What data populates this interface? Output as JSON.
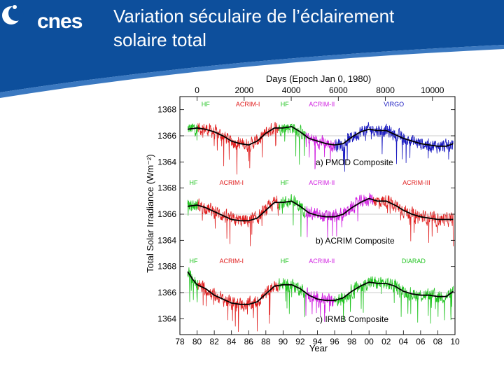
{
  "header": {
    "logo_text": "cnes",
    "title_line1": "Variation séculaire de l’éclairement",
    "title_line2": "solaire total",
    "bg_color": "#0d4f9c"
  },
  "chart_data": {
    "type": "line",
    "xlabel": "Year",
    "top_axis_label": "Days (Epoch Jan 0, 1980)",
    "ylabel": "Total Solar Irradiance (Wm⁻²)",
    "x_tick_labels": [
      "78",
      "80",
      "82",
      "84",
      "86",
      "88",
      "90",
      "92",
      "94",
      "96",
      "98",
      "00",
      "02",
      "04",
      "06",
      "08",
      "10"
    ],
    "x_range": [
      1978,
      2010
    ],
    "top_tick_labels": [
      "0",
      "2000",
      "4000",
      "6000",
      "8000",
      "10000"
    ],
    "y_tick_labels": [
      "1364",
      "1366",
      "1368"
    ],
    "y_range": [
      1363,
      1369
    ],
    "colors": {
      "HF": "#22c422",
      "ACRIM-I": "#e02020",
      "ACRIM-II": "#d020e0",
      "ACRIM-III": "#e02020",
      "VIRGO": "#1818c0",
      "DIARAD": "#22c422",
      "smooth": "#000000"
    },
    "panels": [
      {
        "title": "a) PMOD Composite",
        "segments": [
          {
            "name": "HF",
            "start": 1978.9,
            "end": 1980.1
          },
          {
            "name": "ACRIM-I",
            "start": 1980.1,
            "end": 1989.5
          },
          {
            "name": "HF",
            "start": 1989.5,
            "end": 1992.6
          },
          {
            "name": "ACRIM-II",
            "start": 1992.6,
            "end": 1996.0
          },
          {
            "name": "VIRGO",
            "start": 1996.0,
            "end": 2009.8
          }
        ],
        "segment_labels": [
          {
            "text": "HF",
            "x": 1980.5
          },
          {
            "text": "ACRIM-I",
            "x": 1984.5
          },
          {
            "text": "HF",
            "x": 1989.7
          },
          {
            "text": "ACRIM-II",
            "x": 1993.0
          },
          {
            "text": "VIRGO",
            "x": 2001.7
          }
        ],
        "smooth_values": [
          [
            1978.9,
            1366.5
          ],
          [
            1980,
            1366.6
          ],
          [
            1981,
            1366.5
          ],
          [
            1982,
            1366.3
          ],
          [
            1983,
            1366.0
          ],
          [
            1984,
            1365.6
          ],
          [
            1985,
            1365.4
          ],
          [
            1986,
            1365.3
          ],
          [
            1987,
            1365.6
          ],
          [
            1988,
            1366.2
          ],
          [
            1989,
            1366.6
          ],
          [
            1990,
            1366.6
          ],
          [
            1991,
            1366.7
          ],
          [
            1992,
            1366.3
          ],
          [
            1993,
            1365.8
          ],
          [
            1994,
            1365.6
          ],
          [
            1995,
            1365.4
          ],
          [
            1996,
            1365.3
          ],
          [
            1997,
            1365.4
          ],
          [
            1998,
            1365.9
          ],
          [
            1999,
            1366.3
          ],
          [
            2000,
            1366.5
          ],
          [
            2001,
            1366.4
          ],
          [
            2002,
            1366.4
          ],
          [
            2003,
            1366.1
          ],
          [
            2004,
            1365.8
          ],
          [
            2005,
            1365.6
          ],
          [
            2006,
            1365.4
          ],
          [
            2007,
            1365.3
          ],
          [
            2008,
            1365.2
          ],
          [
            2009,
            1365.2
          ],
          [
            2009.8,
            1365.4
          ]
        ]
      },
      {
        "title": "b) ACRIM Composite",
        "segments": [
          {
            "name": "HF",
            "start": 1978.9,
            "end": 1980.1
          },
          {
            "name": "ACRIM-I",
            "start": 1980.1,
            "end": 1989.5
          },
          {
            "name": "HF",
            "start": 1989.5,
            "end": 1992.6
          },
          {
            "name": "ACRIM-II",
            "start": 1992.6,
            "end": 2000.5
          },
          {
            "name": "ACRIM-III",
            "start": 2000.5,
            "end": 2009.8
          }
        ],
        "segment_labels": [
          {
            "text": "HF",
            "x": 1979.1
          },
          {
            "text": "ACRIM-I",
            "x": 1982.6
          },
          {
            "text": "HF",
            "x": 1989.7
          },
          {
            "text": "ACRIM-II",
            "x": 1993.0
          },
          {
            "text": "ACRIM-III",
            "x": 2003.9
          }
        ],
        "smooth_values": [
          [
            1978.9,
            1366.6
          ],
          [
            1980,
            1366.7
          ],
          [
            1981,
            1366.5
          ],
          [
            1982,
            1366.2
          ],
          [
            1983,
            1365.9
          ],
          [
            1984,
            1365.6
          ],
          [
            1985,
            1365.5
          ],
          [
            1986,
            1365.5
          ],
          [
            1987,
            1365.7
          ],
          [
            1988,
            1366.3
          ],
          [
            1989,
            1366.9
          ],
          [
            1990,
            1366.9
          ],
          [
            1991,
            1367.0
          ],
          [
            1992,
            1366.6
          ],
          [
            1993,
            1366.1
          ],
          [
            1994,
            1365.9
          ],
          [
            1995,
            1365.8
          ],
          [
            1996,
            1365.8
          ],
          [
            1997,
            1366.0
          ],
          [
            1998,
            1366.5
          ],
          [
            1999,
            1366.9
          ],
          [
            2000,
            1367.2
          ],
          [
            2001,
            1367.0
          ],
          [
            2002,
            1367.0
          ],
          [
            2003,
            1366.7
          ],
          [
            2004,
            1366.3
          ],
          [
            2005,
            1366.0
          ],
          [
            2006,
            1365.8
          ],
          [
            2007,
            1365.7
          ],
          [
            2008,
            1365.6
          ],
          [
            2009,
            1365.6
          ],
          [
            2009.8,
            1365.6
          ]
        ]
      },
      {
        "title": "c) IRMB Composite",
        "segments": [
          {
            "name": "HF",
            "start": 1978.9,
            "end": 1980.1
          },
          {
            "name": "ACRIM-I",
            "start": 1980.1,
            "end": 1989.5
          },
          {
            "name": "HF",
            "start": 1989.5,
            "end": 1992.6
          },
          {
            "name": "ACRIM-II",
            "start": 1992.6,
            "end": 1996.0
          },
          {
            "name": "DIARAD",
            "start": 1996.0,
            "end": 2009.8
          }
        ],
        "segment_labels": [
          {
            "text": "HF",
            "x": 1979.1
          },
          {
            "text": "ACRIM-I",
            "x": 1982.6
          },
          {
            "text": "HF",
            "x": 1989.7
          },
          {
            "text": "ACRIM-II",
            "x": 1993.0
          },
          {
            "text": "DIARAD",
            "x": 2003.8
          }
        ],
        "smooth_values": [
          [
            1978.9,
            1367.6
          ],
          [
            1979.5,
            1367.0
          ],
          [
            1980,
            1366.6
          ],
          [
            1981,
            1366.3
          ],
          [
            1982,
            1365.8
          ],
          [
            1983,
            1365.5
          ],
          [
            1984,
            1365.2
          ],
          [
            1985,
            1365.1
          ],
          [
            1986,
            1365.1
          ],
          [
            1987,
            1365.3
          ],
          [
            1988,
            1365.9
          ],
          [
            1989,
            1366.5
          ],
          [
            1990,
            1366.6
          ],
          [
            1991,
            1366.6
          ],
          [
            1992,
            1366.3
          ],
          [
            1993,
            1365.8
          ],
          [
            1994,
            1365.5
          ],
          [
            1995,
            1365.4
          ],
          [
            1996,
            1365.4
          ],
          [
            1997,
            1365.6
          ],
          [
            1998,
            1366.1
          ],
          [
            1999,
            1366.5
          ],
          [
            2000,
            1366.8
          ],
          [
            2001,
            1366.7
          ],
          [
            2002,
            1366.7
          ],
          [
            2003,
            1366.5
          ],
          [
            2004,
            1366.1
          ],
          [
            2005,
            1365.9
          ],
          [
            2006,
            1365.8
          ],
          [
            2007,
            1365.8
          ],
          [
            2008,
            1365.7
          ],
          [
            2009,
            1365.7
          ],
          [
            2009.8,
            1366.1
          ]
        ]
      }
    ]
  }
}
